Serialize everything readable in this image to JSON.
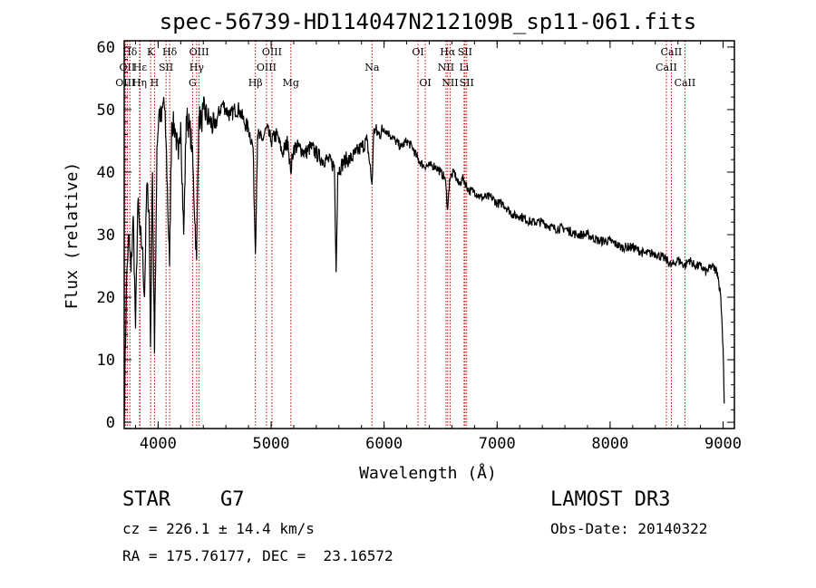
{
  "chart_data": {
    "type": "line",
    "title": "spec-56739-HD114047N212109B_sp11-061.fits",
    "xlabel": "Wavelength (Å)",
    "ylabel": "Flux (relative)",
    "xlim": [
      3700,
      9100
    ],
    "ylim": [
      -1,
      61
    ],
    "xticks": [
      4000,
      5000,
      6000,
      7000,
      8000,
      9000
    ],
    "yticks": [
      0,
      10,
      20,
      30,
      40,
      50,
      60
    ],
    "series": [
      {
        "name": "spectrum",
        "x": [
          3700,
          3720,
          3740,
          3760,
          3780,
          3800,
          3820,
          3840,
          3860,
          3880,
          3900,
          3920,
          3933,
          3950,
          3968,
          3990,
          4010,
          4030,
          4050,
          4070,
          4101,
          4120,
          4150,
          4180,
          4200,
          4226,
          4250,
          4280,
          4300,
          4340,
          4360,
          4383,
          4400,
          4430,
          4460,
          4500,
          4530,
          4570,
          4600,
          4640,
          4680,
          4720,
          4760,
          4800,
          4840,
          4861,
          4880,
          4920,
          4960,
          5000,
          5050,
          5100,
          5150,
          5172,
          5200,
          5250,
          5300,
          5350,
          5400,
          5450,
          5500,
          5560,
          5575,
          5590,
          5620,
          5660,
          5700,
          5750,
          5800,
          5850,
          5893,
          5910,
          5950,
          6000,
          6050,
          6100,
          6150,
          6200,
          6250,
          6300,
          6350,
          6400,
          6450,
          6500,
          6540,
          6563,
          6580,
          6620,
          6660,
          6700,
          6750,
          6800,
          6850,
          6900,
          6950,
          7000,
          7050,
          7100,
          7150,
          7200,
          7300,
          7400,
          7500,
          7600,
          7700,
          7800,
          7900,
          8000,
          8100,
          8200,
          8300,
          8400,
          8498,
          8542,
          8600,
          8662,
          8700,
          8750,
          8800,
          8850,
          8900,
          8950,
          8980,
          9000,
          9010
        ],
        "y": [
          1,
          22,
          30,
          24,
          33,
          15,
          35,
          30,
          28,
          20,
          38,
          34,
          12,
          40,
          11,
          44,
          50,
          48,
          52,
          45,
          25,
          48,
          47,
          42,
          48,
          30,
          49,
          47,
          44,
          26,
          49,
          48,
          50,
          49,
          48,
          47,
          49,
          51,
          50,
          49,
          50,
          50,
          48,
          47,
          44,
          27,
          46,
          45,
          47,
          45,
          46,
          43,
          45,
          40,
          44,
          44,
          43,
          44,
          43,
          42,
          42,
          41,
          24,
          40,
          41,
          42,
          42,
          43,
          44,
          45,
          38,
          47,
          46,
          47,
          46,
          45,
          44,
          45,
          44,
          42,
          41,
          41,
          41,
          40,
          39,
          34,
          39,
          40,
          38,
          39,
          37,
          37,
          36,
          36,
          36,
          35,
          35,
          34,
          33,
          33,
          32,
          32,
          31,
          31,
          30,
          30,
          29,
          29,
          28,
          28,
          27,
          27,
          26,
          25,
          26,
          25,
          26,
          25,
          25,
          24,
          25,
          24,
          20,
          12,
          3
        ]
      }
    ],
    "lines": [
      {
        "name": "Hδ",
        "x": 3750,
        "row": 1
      },
      {
        "name": "OII",
        "x": 3727,
        "row": 2
      },
      {
        "name": "OIII",
        "x": 3710,
        "row": 3
      },
      {
        "name": "K",
        "x": 3934,
        "row": 1
      },
      {
        "name": "Hε",
        "x": 3840,
        "row": 2
      },
      {
        "name": "Hη",
        "x": 3836,
        "row": 3
      },
      {
        "name": "Hδ",
        "x": 4102,
        "row": 1
      },
      {
        "name": "SII",
        "x": 4070,
        "row": 2
      },
      {
        "name": "H",
        "x": 3968,
        "row": 3
      },
      {
        "name": "OIII",
        "x": 4363,
        "row": 1
      },
      {
        "name": "Hγ",
        "x": 4341,
        "row": 2
      },
      {
        "name": "G",
        "x": 4305,
        "row": 3
      },
      {
        "name": "OIII",
        "x": 5007,
        "row": 1
      },
      {
        "name": "OIII",
        "x": 4959,
        "row": 2
      },
      {
        "name": "Hβ",
        "x": 4861,
        "row": 3
      },
      {
        "name": "Mg",
        "x": 5175,
        "row": 3
      },
      {
        "name": "Na",
        "x": 5893,
        "row": 2
      },
      {
        "name": "OI",
        "x": 6300,
        "row": 1
      },
      {
        "name": "OI",
        "x": 6364,
        "row": 3
      },
      {
        "name": "Hα",
        "x": 6563,
        "row": 1
      },
      {
        "name": "SII",
        "x": 6716,
        "row": 1
      },
      {
        "name": "NII",
        "x": 6548,
        "row": 2
      },
      {
        "name": "Li",
        "x": 6708,
        "row": 2
      },
      {
        "name": "NII",
        "x": 6584,
        "row": 3
      },
      {
        "name": "SII",
        "x": 6731,
        "row": 3
      },
      {
        "name": "CaII",
        "x": 8542,
        "row": 1
      },
      {
        "name": "CaII",
        "x": 8498,
        "row": 2
      },
      {
        "name": "CaII",
        "x": 8662,
        "row": 3
      }
    ]
  },
  "info": {
    "class_label": "STAR",
    "subclass": "G7",
    "survey": "LAMOST DR3",
    "cz": "cz = 226.1 ± 14.4 km/s",
    "obs_date": "Obs-Date: 20140322",
    "radec": "RA = 175.76177, DEC =  23.16572"
  }
}
